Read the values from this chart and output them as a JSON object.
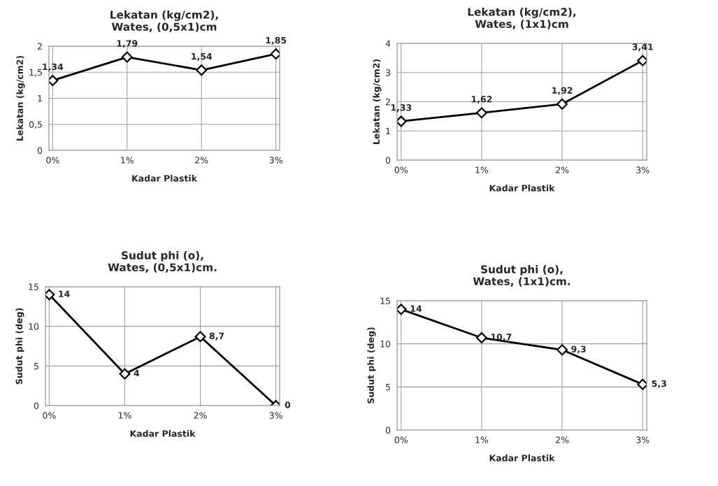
{
  "chart_data": [
    {
      "type": "line",
      "title": "Lekatan (kg/cm2),\nWates, (0,5x1)cm",
      "xlabel": "Kadar Plastik",
      "ylabel": "Lekatan (kg/cm2)",
      "categories": [
        "0%",
        "1%",
        "2%",
        "3%"
      ],
      "series": [
        {
          "color": "#000000",
          "values": [
            1.34,
            1.79,
            1.54,
            1.85
          ],
          "value_labels": [
            "1,34",
            "1,79",
            "1,54",
            "1,85"
          ]
        }
      ],
      "ylim": [
        0,
        2
      ],
      "yticks": [
        0,
        {
          "value": 0.5,
          "label": "0,5"
        },
        1,
        {
          "value": 1.5,
          "label": "1,5"
        },
        2
      ],
      "grid": true,
      "marker": "diamond",
      "line_style": "solid"
    },
    {
      "type": "line",
      "title": "Lekatan (kg/cm2),\nWates, (1x1)cm",
      "xlabel": "Kadar Plastik",
      "ylabel": "Lekatan (kg/cm2)",
      "categories": [
        "0%",
        "1%",
        "2%",
        "3%"
      ],
      "series": [
        {
          "color": "#000000",
          "values": [
            1.33,
            1.62,
            1.92,
            3.41
          ],
          "value_labels": [
            "1,33",
            "1,62",
            "1,92",
            "3,41"
          ]
        }
      ],
      "ylim": [
        0,
        4
      ],
      "yticks": [
        0,
        1,
        2,
        3,
        4
      ],
      "grid": true,
      "marker": "diamond",
      "line_style": "solid"
    },
    {
      "type": "line",
      "title": "Sudut phi (o),\nWates, (0,5x1)cm.",
      "xlabel": "Kadar Plastik",
      "ylabel": "Sudut phi (deg)",
      "categories": [
        "0%",
        "1%",
        "2%",
        "3%"
      ],
      "series": [
        {
          "color": "#000000",
          "values": [
            14,
            4,
            8.7,
            0
          ],
          "value_labels": [
            "14",
            "4",
            "8,7",
            "0"
          ]
        }
      ],
      "ylim": [
        0,
        15
      ],
      "yticks": [
        0,
        5,
        10,
        15
      ],
      "grid": true,
      "marker": "diamond",
      "line_style": "solid"
    },
    {
      "type": "line",
      "title": "Sudut phi (o),\nWates, (1x1)cm.",
      "xlabel": "Kadar Plastik",
      "ylabel": "Sudut phi (deg)",
      "categories": [
        "0%",
        "1%",
        "2%",
        "3%"
      ],
      "series": [
        {
          "color": "#000000",
          "values": [
            14,
            10.7,
            9.3,
            5.3
          ],
          "value_labels": [
            "14",
            "10,7",
            "9,3",
            "5,3"
          ]
        }
      ],
      "ylim": [
        0,
        15
      ],
      "yticks": [
        0,
        5,
        10,
        15
      ],
      "grid": true,
      "marker": "diamond",
      "line_style": "solid"
    }
  ]
}
